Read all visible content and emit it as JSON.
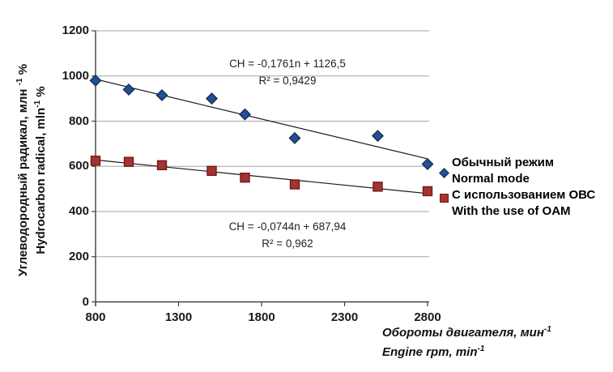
{
  "chart_data": {
    "type": "scatter",
    "x": [
      800,
      1000,
      1200,
      1500,
      1700,
      2000,
      2500,
      2800
    ],
    "series": [
      {
        "name_ru": "Обычный режим",
        "name_en": "Normal mode",
        "marker": "diamond",
        "fill": "#234F94",
        "stroke": "#132F55",
        "values": [
          980,
          940,
          915,
          900,
          830,
          725,
          735,
          610
        ],
        "trend": {
          "slope": -0.1761,
          "intercept": 1126.5,
          "equation": "CH = -0,1761n + 1126,5",
          "r2": "R² = 0,9429"
        }
      },
      {
        "name_ru": "С использованием ОВС",
        "name_en": "With the use of OAM",
        "marker": "square",
        "fill": "#A5332E",
        "stroke": "#6F1B18",
        "values": [
          625,
          620,
          605,
          580,
          550,
          520,
          510,
          490
        ],
        "trend": {
          "slope": -0.0744,
          "intercept": 687.94,
          "equation": "CH = -0,0744n + 687,94",
          "r2": "R² = 0,962"
        }
      }
    ],
    "xticks": [
      800,
      1300,
      1800,
      2300,
      2800
    ],
    "yticks": [
      0,
      200,
      400,
      600,
      800,
      1000,
      1200
    ],
    "xlim": [
      800,
      2800
    ],
    "ylim": [
      0,
      1200
    ],
    "grid": "horizontal",
    "legend_position": "right",
    "xlabel": {
      "ru_pre": "Обороты двигателя, мин",
      "ru_sup": "-1",
      "en_pre": "Engine rpm, min",
      "en_sup": "-1"
    },
    "ylabel": {
      "ru_pre": "Углеводородный радикал, млн ",
      "ru_sup": "-1",
      "ru_post": " %",
      "en_pre": "Hydrocarbon radical, mln",
      "en_sup": "-1",
      "en_post": " %"
    },
    "colors": {
      "grid": "#A6A6A6",
      "axis": "#404040",
      "trend": "#1C1C1C",
      "text": "#1A1A1A",
      "background": "#FFFFFF"
    }
  }
}
